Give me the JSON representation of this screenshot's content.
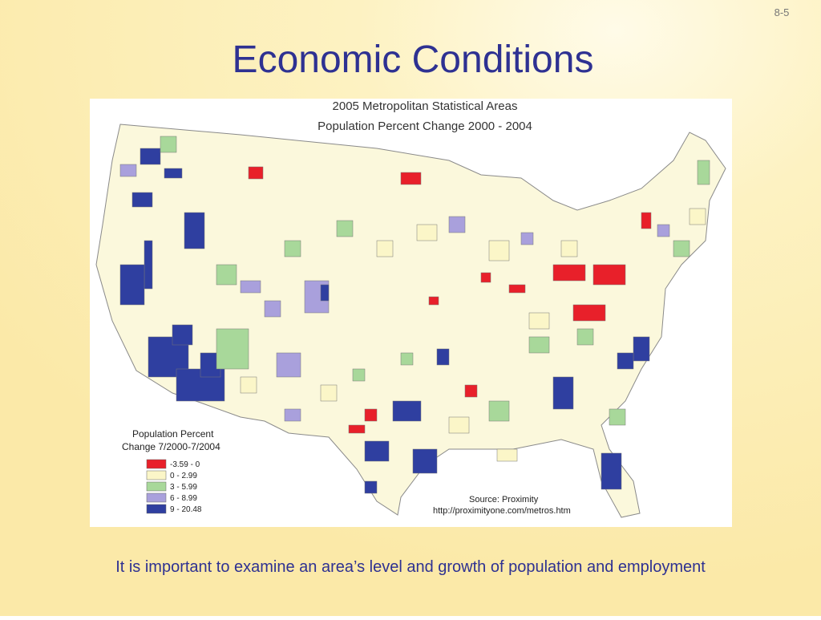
{
  "slide_number": "8-5",
  "title": "Economic Conditions",
  "map": {
    "title_lines": [
      "2005 Metropolitan Statistical Areas",
      "Population Percent Change 2000 - 2004"
    ],
    "legend": {
      "title_lines": [
        "Population Percent",
        "Change 7/2000-7/2004"
      ],
      "items": [
        {
          "label": "-3.59 - 0",
          "color": "#e8202a"
        },
        {
          "label": "0 - 2.99",
          "color": "#fbf6c8"
        },
        {
          "label": "3 - 5.99",
          "color": "#a8d89a"
        },
        {
          "label": "6 - 8.99",
          "color": "#a9a0dc"
        },
        {
          "label": "9 - 20.48",
          "color": "#2f3fa0"
        }
      ]
    },
    "source_lines": [
      "Source:  Proximity",
      "http://proximityone.com/metros.htm"
    ]
  },
  "caption": "It is important to examine an area’s level and growth of population and employment"
}
